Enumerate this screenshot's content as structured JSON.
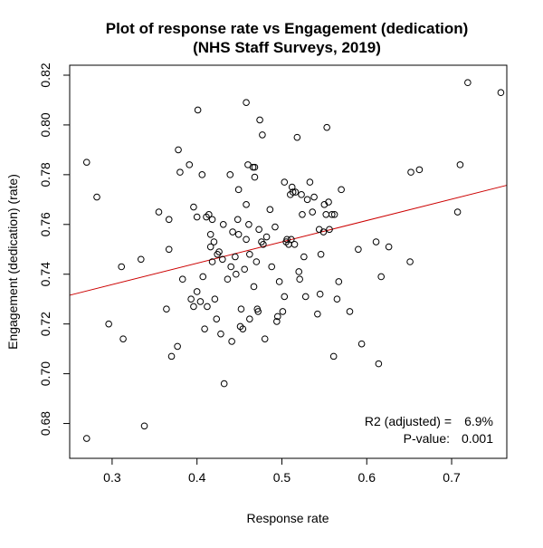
{
  "chart_data": {
    "type": "scatter",
    "title_line1": "Plot of response rate vs  Engagement (dedication)",
    "title_line2": "(NHS Staff Surveys, 2019)",
    "xlabel": "Response rate",
    "ylabel": "Engagement (dedication)  (rate)",
    "xlim": [
      0.25,
      0.765
    ],
    "ylim": [
      0.666,
      0.824
    ],
    "x_ticks": [
      0.3,
      0.4,
      0.5,
      0.6,
      0.7
    ],
    "x_tick_labels": [
      "0.3",
      "0.4",
      "0.5",
      "0.6",
      "0.7"
    ],
    "y_ticks": [
      0.68,
      0.7,
      0.72,
      0.74,
      0.76,
      0.78,
      0.8,
      0.82
    ],
    "y_tick_labels": [
      "0.68",
      "0.70",
      "0.72",
      "0.74",
      "0.76",
      "0.78",
      "0.80",
      "0.82"
    ],
    "grid": false,
    "point_color": "#000000",
    "regression_line": {
      "color": "#cc0000",
      "intercept": 0.7101,
      "slope": 0.0858
    },
    "annotation": {
      "r2_label": "R2 (adjusted) =",
      "r2_value": "6.9%",
      "p_label": "P-value:",
      "p_value": "0.001"
    },
    "points": [
      [
        0.27,
        0.674
      ],
      [
        0.27,
        0.785
      ],
      [
        0.282,
        0.771
      ],
      [
        0.296,
        0.72
      ],
      [
        0.311,
        0.743
      ],
      [
        0.313,
        0.714
      ],
      [
        0.334,
        0.746
      ],
      [
        0.338,
        0.679
      ],
      [
        0.355,
        0.765
      ],
      [
        0.364,
        0.726
      ],
      [
        0.367,
        0.762
      ],
      [
        0.367,
        0.75
      ],
      [
        0.37,
        0.707
      ],
      [
        0.377,
        0.711
      ],
      [
        0.378,
        0.79
      ],
      [
        0.38,
        0.781
      ],
      [
        0.383,
        0.738
      ],
      [
        0.391,
        0.784
      ],
      [
        0.393,
        0.73
      ],
      [
        0.396,
        0.767
      ],
      [
        0.396,
        0.727
      ],
      [
        0.4,
        0.733
      ],
      [
        0.4,
        0.763
      ],
      [
        0.401,
        0.806
      ],
      [
        0.404,
        0.729
      ],
      [
        0.406,
        0.78
      ],
      [
        0.407,
        0.739
      ],
      [
        0.409,
        0.718
      ],
      [
        0.411,
        0.763
      ],
      [
        0.412,
        0.727
      ],
      [
        0.414,
        0.764
      ],
      [
        0.416,
        0.751
      ],
      [
        0.416,
        0.756
      ],
      [
        0.418,
        0.745
      ],
      [
        0.418,
        0.762
      ],
      [
        0.42,
        0.753
      ],
      [
        0.421,
        0.73
      ],
      [
        0.423,
        0.722
      ],
      [
        0.424,
        0.748
      ],
      [
        0.426,
        0.749
      ],
      [
        0.428,
        0.716
      ],
      [
        0.43,
        0.746
      ],
      [
        0.431,
        0.76
      ],
      [
        0.432,
        0.696
      ],
      [
        0.436,
        0.738
      ],
      [
        0.439,
        0.78
      ],
      [
        0.44,
        0.743
      ],
      [
        0.441,
        0.713
      ],
      [
        0.442,
        0.757
      ],
      [
        0.445,
        0.747
      ],
      [
        0.446,
        0.74
      ],
      [
        0.448,
        0.762
      ],
      [
        0.449,
        0.756
      ],
      [
        0.449,
        0.774
      ],
      [
        0.451,
        0.719
      ],
      [
        0.452,
        0.726
      ],
      [
        0.454,
        0.718
      ],
      [
        0.456,
        0.742
      ],
      [
        0.458,
        0.809
      ],
      [
        0.458,
        0.768
      ],
      [
        0.458,
        0.754
      ],
      [
        0.46,
        0.784
      ],
      [
        0.461,
        0.76
      ],
      [
        0.462,
        0.748
      ],
      [
        0.462,
        0.722
      ],
      [
        0.466,
        0.783
      ],
      [
        0.467,
        0.735
      ],
      [
        0.468,
        0.783
      ],
      [
        0.468,
        0.779
      ],
      [
        0.47,
        0.745
      ],
      [
        0.471,
        0.726
      ],
      [
        0.472,
        0.725
      ],
      [
        0.473,
        0.758
      ],
      [
        0.474,
        0.802
      ],
      [
        0.476,
        0.753
      ],
      [
        0.477,
        0.796
      ],
      [
        0.478,
        0.752
      ],
      [
        0.48,
        0.714
      ],
      [
        0.482,
        0.755
      ],
      [
        0.486,
        0.766
      ],
      [
        0.488,
        0.743
      ],
      [
        0.492,
        0.759
      ],
      [
        0.494,
        0.721
      ],
      [
        0.495,
        0.723
      ],
      [
        0.497,
        0.737
      ],
      [
        0.501,
        0.725
      ],
      [
        0.503,
        0.731
      ],
      [
        0.503,
        0.777
      ],
      [
        0.505,
        0.753
      ],
      [
        0.506,
        0.754
      ],
      [
        0.508,
        0.752
      ],
      [
        0.51,
        0.772
      ],
      [
        0.511,
        0.754
      ],
      [
        0.512,
        0.775
      ],
      [
        0.513,
        0.773
      ],
      [
        0.515,
        0.752
      ],
      [
        0.516,
        0.773
      ],
      [
        0.518,
        0.795
      ],
      [
        0.52,
        0.741
      ],
      [
        0.521,
        0.738
      ],
      [
        0.523,
        0.772
      ],
      [
        0.524,
        0.764
      ],
      [
        0.526,
        0.747
      ],
      [
        0.528,
        0.731
      ],
      [
        0.53,
        0.77
      ],
      [
        0.533,
        0.777
      ],
      [
        0.536,
        0.765
      ],
      [
        0.538,
        0.771
      ],
      [
        0.542,
        0.724
      ],
      [
        0.544,
        0.758
      ],
      [
        0.545,
        0.732
      ],
      [
        0.546,
        0.748
      ],
      [
        0.549,
        0.757
      ],
      [
        0.55,
        0.768
      ],
      [
        0.552,
        0.764
      ],
      [
        0.553,
        0.799
      ],
      [
        0.555,
        0.769
      ],
      [
        0.556,
        0.758
      ],
      [
        0.559,
        0.764
      ],
      [
        0.561,
        0.707
      ],
      [
        0.562,
        0.764
      ],
      [
        0.565,
        0.73
      ],
      [
        0.567,
        0.737
      ],
      [
        0.57,
        0.774
      ],
      [
        0.58,
        0.725
      ],
      [
        0.59,
        0.75
      ],
      [
        0.594,
        0.712
      ],
      [
        0.611,
        0.753
      ],
      [
        0.614,
        0.704
      ],
      [
        0.617,
        0.739
      ],
      [
        0.626,
        0.751
      ],
      [
        0.651,
        0.745
      ],
      [
        0.652,
        0.781
      ],
      [
        0.662,
        0.782
      ],
      [
        0.707,
        0.765
      ],
      [
        0.71,
        0.784
      ],
      [
        0.719,
        0.817
      ],
      [
        0.758,
        0.813
      ]
    ]
  }
}
